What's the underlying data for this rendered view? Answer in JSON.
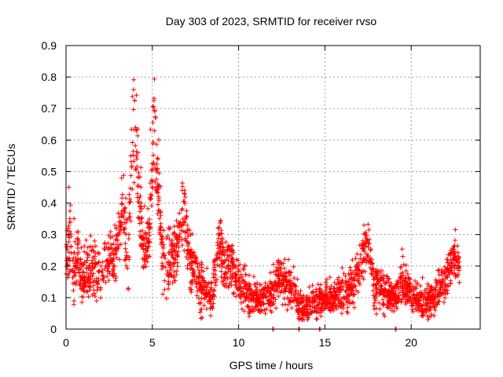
{
  "chart_data": {
    "type": "scatter",
    "title": "Day 303 of 2023, SRMTID for receiver rvso",
    "xlabel": "GPS time / hours",
    "ylabel": "SRMTID / TECUs",
    "xlim": [
      0,
      24
    ],
    "ylim": [
      0,
      0.9
    ],
    "xticks": [
      0,
      5,
      10,
      15,
      20
    ],
    "xtick_labels": [
      "0",
      "5",
      "10",
      "15",
      "20"
    ],
    "yticks": [
      0,
      0.1,
      0.2,
      0.3,
      0.4,
      0.5,
      0.6,
      0.7,
      0.8,
      0.9
    ],
    "ytick_labels": [
      "0",
      "0.1",
      "0.2",
      "0.3",
      "0.4",
      "0.5",
      "0.6",
      "0.7",
      "0.8",
      "0.9"
    ],
    "grid": true,
    "marker": "plus",
    "color": "#ff0000",
    "series_profile": [
      {
        "x": 0.0,
        "y": 0.2,
        "spread": 0.05
      },
      {
        "x": 0.2,
        "y": 0.3,
        "spread": 0.07
      },
      {
        "x": 0.4,
        "y": 0.18,
        "spread": 0.05
      },
      {
        "x": 0.7,
        "y": 0.22,
        "spread": 0.05
      },
      {
        "x": 1.0,
        "y": 0.15,
        "spread": 0.05
      },
      {
        "x": 1.5,
        "y": 0.2,
        "spread": 0.05
      },
      {
        "x": 2.0,
        "y": 0.17,
        "spread": 0.05
      },
      {
        "x": 2.5,
        "y": 0.22,
        "spread": 0.06
      },
      {
        "x": 3.0,
        "y": 0.25,
        "spread": 0.06
      },
      {
        "x": 3.3,
        "y": 0.4,
        "spread": 0.08
      },
      {
        "x": 3.6,
        "y": 0.25,
        "spread": 0.07
      },
      {
        "x": 3.9,
        "y": 0.65,
        "spread": 0.12
      },
      {
        "x": 4.2,
        "y": 0.45,
        "spread": 0.1
      },
      {
        "x": 4.5,
        "y": 0.25,
        "spread": 0.06
      },
      {
        "x": 4.8,
        "y": 0.28,
        "spread": 0.06
      },
      {
        "x": 5.1,
        "y": 0.65,
        "spread": 0.12
      },
      {
        "x": 5.3,
        "y": 0.48,
        "spread": 0.07
      },
      {
        "x": 5.6,
        "y": 0.22,
        "spread": 0.06
      },
      {
        "x": 6.0,
        "y": 0.2,
        "spread": 0.06
      },
      {
        "x": 6.4,
        "y": 0.25,
        "spread": 0.06
      },
      {
        "x": 6.8,
        "y": 0.38,
        "spread": 0.07
      },
      {
        "x": 7.2,
        "y": 0.22,
        "spread": 0.06
      },
      {
        "x": 7.6,
        "y": 0.15,
        "spread": 0.05
      },
      {
        "x": 8.0,
        "y": 0.12,
        "spread": 0.04
      },
      {
        "x": 8.5,
        "y": 0.1,
        "spread": 0.04
      },
      {
        "x": 8.9,
        "y": 0.3,
        "spread": 0.06
      },
      {
        "x": 9.2,
        "y": 0.18,
        "spread": 0.05
      },
      {
        "x": 9.6,
        "y": 0.22,
        "spread": 0.05
      },
      {
        "x": 10.0,
        "y": 0.15,
        "spread": 0.04
      },
      {
        "x": 10.5,
        "y": 0.12,
        "spread": 0.04
      },
      {
        "x": 11.0,
        "y": 0.1,
        "spread": 0.03
      },
      {
        "x": 11.5,
        "y": 0.1,
        "spread": 0.03
      },
      {
        "x": 12.0,
        "y": 0.12,
        "spread": 0.04
      },
      {
        "x": 12.3,
        "y": 0.16,
        "spread": 0.04
      },
      {
        "x": 12.7,
        "y": 0.14,
        "spread": 0.04
      },
      {
        "x": 13.2,
        "y": 0.12,
        "spread": 0.04
      },
      {
        "x": 13.6,
        "y": 0.06,
        "spread": 0.03
      },
      {
        "x": 14.2,
        "y": 0.08,
        "spread": 0.03
      },
      {
        "x": 14.8,
        "y": 0.09,
        "spread": 0.03
      },
      {
        "x": 15.5,
        "y": 0.1,
        "spread": 0.03
      },
      {
        "x": 16.0,
        "y": 0.11,
        "spread": 0.04
      },
      {
        "x": 16.5,
        "y": 0.12,
        "spread": 0.04
      },
      {
        "x": 17.0,
        "y": 0.18,
        "spread": 0.05
      },
      {
        "x": 17.5,
        "y": 0.3,
        "spread": 0.05
      },
      {
        "x": 17.8,
        "y": 0.15,
        "spread": 0.05
      },
      {
        "x": 18.3,
        "y": 0.12,
        "spread": 0.04
      },
      {
        "x": 19.0,
        "y": 0.1,
        "spread": 0.03
      },
      {
        "x": 19.5,
        "y": 0.15,
        "spread": 0.04
      },
      {
        "x": 20.0,
        "y": 0.11,
        "spread": 0.03
      },
      {
        "x": 20.5,
        "y": 0.09,
        "spread": 0.03
      },
      {
        "x": 21.0,
        "y": 0.08,
        "spread": 0.03
      },
      {
        "x": 21.5,
        "y": 0.12,
        "spread": 0.04
      },
      {
        "x": 22.0,
        "y": 0.15,
        "spread": 0.04
      },
      {
        "x": 22.4,
        "y": 0.22,
        "spread": 0.04
      },
      {
        "x": 22.8,
        "y": 0.2,
        "spread": 0.03
      }
    ],
    "zero_points_x": [
      12.0,
      13.5,
      14.7,
      19.1
    ]
  }
}
